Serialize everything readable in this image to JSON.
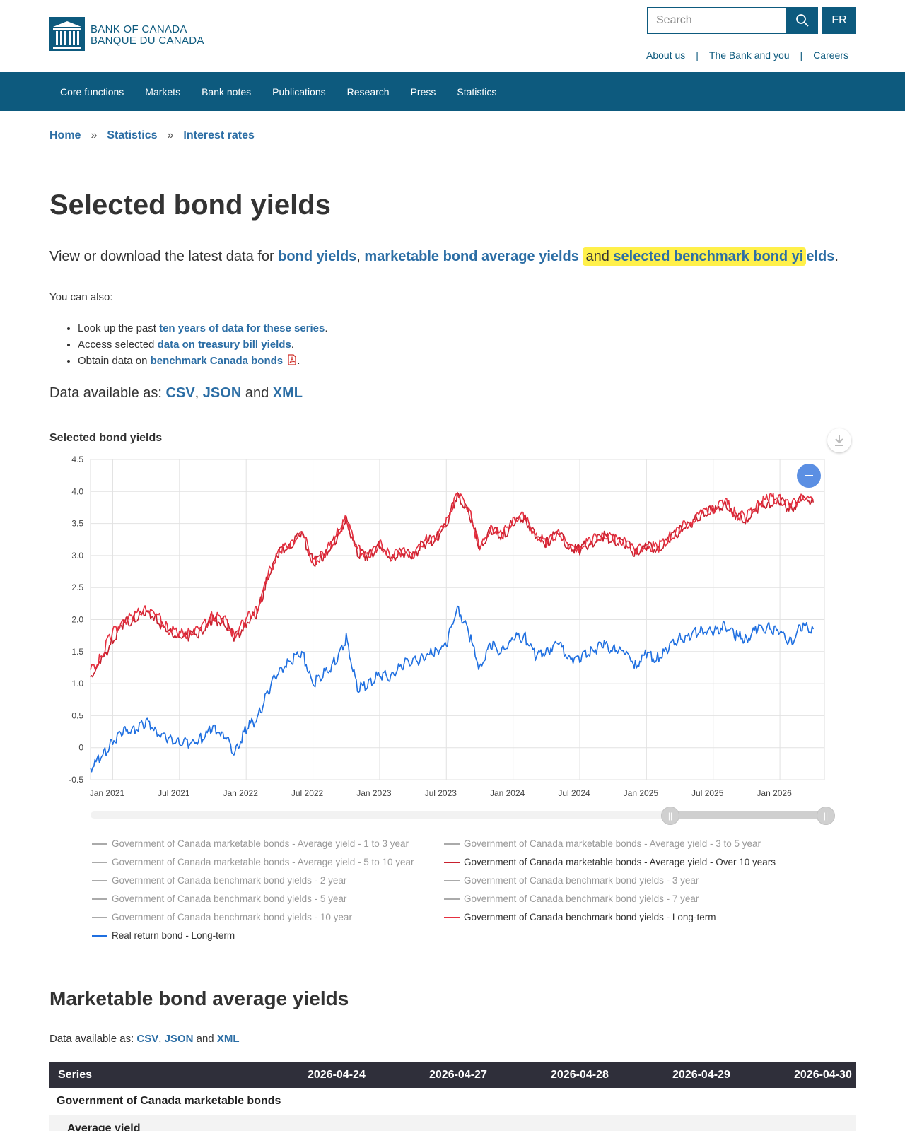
{
  "header": {
    "logo_line1": "BANK OF CANADA",
    "logo_line2": "BANQUE DU CANADA",
    "search_placeholder": "Search",
    "lang_button": "FR",
    "utility_links": [
      "About us",
      "The Bank and you",
      "Careers"
    ]
  },
  "nav": {
    "items": [
      "Core functions",
      "Markets",
      "Bank notes",
      "Publications",
      "Research",
      "Press",
      "Statistics"
    ]
  },
  "breadcrumb": [
    "Home",
    "Statistics",
    "Interest rates"
  ],
  "page_title": "Selected bond yields",
  "lede": {
    "prefix": "View or download the latest data for ",
    "link1": "bond yields",
    "comma": ", ",
    "link2": "marketable bond average yields",
    "and_text": "and",
    "link3a": "selected benchmark bond yi",
    "link3b": "elds",
    "period": "."
  },
  "also_text": "You can also:",
  "bullets": [
    {
      "prefix": "Look up the past ",
      "link": "ten years of data for these series",
      "suffix": "."
    },
    {
      "prefix": "Access selected ",
      "link": "data on treasury bill yields",
      "suffix": "."
    },
    {
      "prefix": "Obtain data on ",
      "link": "benchmark Canada bonds",
      "suffix": "."
    }
  ],
  "data_available": {
    "prefix": "Data available as: ",
    "csv": "CSV",
    "json": "JSON",
    "and": " and ",
    "xml": "XML"
  },
  "chart_data": {
    "type": "line",
    "title": "Selected bond yields",
    "ylim": [
      -0.5,
      4.5
    ],
    "y_ticks": [
      "4.5",
      "4.0",
      "3.5",
      "3.0",
      "2.5",
      "2.0",
      "1.5",
      "1.0",
      "0.5",
      "0",
      "-0.5"
    ],
    "x_ticks": [
      "Jan 2021",
      "Jul 2021",
      "Jan 2022",
      "Jul 2022",
      "Jan 2023",
      "Jul 2023",
      "Jan 2024",
      "Jul 2024",
      "Jan 2025",
      "Jul 2025",
      "Jan 2026"
    ],
    "grid": true,
    "colors": {
      "long_avg": "#c8202e",
      "benchmark_lt": "#e53040",
      "real_return": "#1f6fe0"
    },
    "series": [
      {
        "name": "Government of Canada marketable bonds - Average yield - Over 10 years",
        "color": "#c8202e",
        "x": [
          "2020-11",
          "2020-12",
          "2021-01",
          "2021-02",
          "2021-03",
          "2021-04",
          "2021-05",
          "2021-06",
          "2021-07",
          "2021-08",
          "2021-09",
          "2021-10",
          "2021-11",
          "2021-12",
          "2022-01",
          "2022-02",
          "2022-03",
          "2022-04",
          "2022-05",
          "2022-06",
          "2022-07",
          "2022-08",
          "2022-09",
          "2022-10",
          "2022-11",
          "2022-12",
          "2023-01",
          "2023-02",
          "2023-03",
          "2023-04",
          "2023-05",
          "2023-06",
          "2023-07",
          "2023-08",
          "2023-09",
          "2023-10",
          "2023-11",
          "2023-12",
          "2024-01",
          "2024-02",
          "2024-03",
          "2024-04",
          "2024-05",
          "2024-06",
          "2024-07",
          "2024-08",
          "2024-09",
          "2024-10",
          "2024-11",
          "2024-12",
          "2025-01",
          "2025-02",
          "2025-03",
          "2025-04",
          "2025-05",
          "2025-06",
          "2025-07",
          "2025-08",
          "2025-09",
          "2025-10",
          "2025-11",
          "2025-12",
          "2026-01",
          "2026-02",
          "2026-03",
          "2026-04"
        ],
        "values": [
          1.1,
          1.35,
          1.7,
          1.95,
          2.0,
          2.12,
          2.0,
          1.8,
          1.72,
          1.75,
          1.82,
          2.0,
          1.95,
          1.7,
          1.95,
          2.1,
          2.7,
          3.05,
          3.15,
          3.35,
          2.9,
          3.0,
          3.25,
          3.55,
          3.05,
          3.0,
          3.15,
          2.95,
          3.05,
          3.0,
          3.2,
          3.25,
          3.5,
          3.95,
          3.7,
          3.1,
          3.4,
          3.3,
          3.5,
          3.6,
          3.3,
          3.2,
          3.35,
          3.15,
          3.1,
          3.2,
          3.3,
          3.25,
          3.2,
          3.05,
          3.15,
          3.1,
          3.25,
          3.4,
          3.5,
          3.65,
          3.7,
          3.8,
          3.6,
          3.55,
          3.75,
          3.82,
          3.85,
          3.72,
          3.88,
          3.83
        ]
      },
      {
        "name": "Government of Canada benchmark bond yields - Long-term",
        "color": "#e53040",
        "x": [
          "2020-11",
          "2020-12",
          "2021-01",
          "2021-02",
          "2021-03",
          "2021-04",
          "2021-05",
          "2021-06",
          "2021-07",
          "2021-08",
          "2021-09",
          "2021-10",
          "2021-11",
          "2021-12",
          "2022-01",
          "2022-02",
          "2022-03",
          "2022-04",
          "2022-05",
          "2022-06",
          "2022-07",
          "2022-08",
          "2022-09",
          "2022-10",
          "2022-11",
          "2022-12",
          "2023-01",
          "2023-02",
          "2023-03",
          "2023-04",
          "2023-05",
          "2023-06",
          "2023-07",
          "2023-08",
          "2023-09",
          "2023-10",
          "2023-11",
          "2023-12",
          "2024-01",
          "2024-02",
          "2024-03",
          "2024-04",
          "2024-05",
          "2024-06",
          "2024-07",
          "2024-08",
          "2024-09",
          "2024-10",
          "2024-11",
          "2024-12",
          "2025-01",
          "2025-02",
          "2025-03",
          "2025-04",
          "2025-05",
          "2025-06",
          "2025-07",
          "2025-08",
          "2025-09",
          "2025-10",
          "2025-11",
          "2025-12",
          "2026-01",
          "2026-02",
          "2026-03",
          "2026-04"
        ],
        "values": [
          1.2,
          1.45,
          1.8,
          2.0,
          2.05,
          2.18,
          2.05,
          1.85,
          1.78,
          1.8,
          1.88,
          2.05,
          2.0,
          1.75,
          2.0,
          2.15,
          2.72,
          3.08,
          3.18,
          3.38,
          2.92,
          3.02,
          3.28,
          3.58,
          3.08,
          3.02,
          3.18,
          2.98,
          3.08,
          3.02,
          3.22,
          3.28,
          3.52,
          4.0,
          3.72,
          3.12,
          3.42,
          3.32,
          3.52,
          3.62,
          3.32,
          3.22,
          3.36,
          3.16,
          3.12,
          3.22,
          3.32,
          3.26,
          3.22,
          3.07,
          3.17,
          3.12,
          3.27,
          3.42,
          3.52,
          3.68,
          3.72,
          3.85,
          3.65,
          3.6,
          3.8,
          3.9,
          3.88,
          3.78,
          3.92,
          3.88
        ]
      },
      {
        "name": "Real return bond - Long-term",
        "color": "#1f6fe0",
        "x": [
          "2020-11",
          "2020-12",
          "2021-01",
          "2021-02",
          "2021-03",
          "2021-04",
          "2021-05",
          "2021-06",
          "2021-07",
          "2021-08",
          "2021-09",
          "2021-10",
          "2021-11",
          "2021-12",
          "2022-01",
          "2022-02",
          "2022-03",
          "2022-04",
          "2022-05",
          "2022-06",
          "2022-07",
          "2022-08",
          "2022-09",
          "2022-10",
          "2022-11",
          "2022-12",
          "2023-01",
          "2023-02",
          "2023-03",
          "2023-04",
          "2023-05",
          "2023-06",
          "2023-07",
          "2023-08",
          "2023-09",
          "2023-10",
          "2023-11",
          "2023-12",
          "2024-01",
          "2024-02",
          "2024-03",
          "2024-04",
          "2024-05",
          "2024-06",
          "2024-07",
          "2024-08",
          "2024-09",
          "2024-10",
          "2024-11",
          "2024-12",
          "2025-01",
          "2025-02",
          "2025-03",
          "2025-04",
          "2025-05",
          "2025-06",
          "2025-07",
          "2025-08",
          "2025-09",
          "2025-10",
          "2025-11",
          "2025-12",
          "2026-01",
          "2026-02",
          "2026-03",
          "2026-04"
        ],
        "values": [
          -0.3,
          -0.15,
          0.1,
          0.25,
          0.3,
          0.4,
          0.25,
          0.12,
          0.1,
          0.05,
          0.15,
          0.3,
          0.2,
          -0.1,
          0.3,
          0.45,
          0.9,
          1.2,
          1.35,
          1.5,
          1.0,
          1.15,
          1.35,
          1.7,
          0.9,
          1.0,
          1.15,
          1.1,
          1.3,
          1.35,
          1.4,
          1.5,
          1.6,
          2.2,
          1.8,
          1.25,
          1.6,
          1.5,
          1.7,
          1.75,
          1.45,
          1.5,
          1.65,
          1.4,
          1.4,
          1.5,
          1.6,
          1.55,
          1.5,
          1.3,
          1.45,
          1.4,
          1.55,
          1.7,
          1.75,
          1.85,
          1.8,
          1.9,
          1.75,
          1.7,
          1.85,
          1.88,
          1.8,
          1.65,
          1.9,
          1.85
        ]
      }
    ]
  },
  "legend": [
    {
      "label": "Government of Canada marketable bonds - Average yield - 1 to 3 year",
      "active": false,
      "color": "#aaaaaa"
    },
    {
      "label": "Government of Canada marketable bonds - Average yield - 3 to 5 year",
      "active": false,
      "color": "#aaaaaa"
    },
    {
      "label": "Government of Canada marketable bonds - Average yield - 5 to 10 year",
      "active": false,
      "color": "#aaaaaa"
    },
    {
      "label": "Government of Canada marketable bonds - Average yield - Over 10 years",
      "active": true,
      "color": "#c8202e"
    },
    {
      "label": "Government of Canada benchmark bond yields - 2 year",
      "active": false,
      "color": "#aaaaaa"
    },
    {
      "label": "Government of Canada benchmark bond yields - 3 year",
      "active": false,
      "color": "#aaaaaa"
    },
    {
      "label": "Government of Canada benchmark bond yields - 5 year",
      "active": false,
      "color": "#aaaaaa"
    },
    {
      "label": "Government of Canada benchmark bond yields - 7 year",
      "active": false,
      "color": "#aaaaaa"
    },
    {
      "label": "Government of Canada benchmark bond yields - 10 year",
      "active": false,
      "color": "#aaaaaa"
    },
    {
      "label": "Government of Canada benchmark bond yields - Long-term",
      "active": true,
      "color": "#e53040"
    },
    {
      "label": "Real return bond - Long-term",
      "active": true,
      "color": "#1f6fe0"
    }
  ],
  "section2": {
    "title": "Marketable bond average yields",
    "available_prefix": "Data available as: ",
    "csv": "CSV",
    "json": "JSON",
    "and": " and ",
    "xml": "XML"
  },
  "table": {
    "headers": [
      "Series",
      "2026-04-24",
      "2026-04-27",
      "2026-04-28",
      "2026-04-29",
      "2026-04-30"
    ],
    "group_label": "Government of Canada marketable bonds",
    "sub_label": "Average yield"
  }
}
